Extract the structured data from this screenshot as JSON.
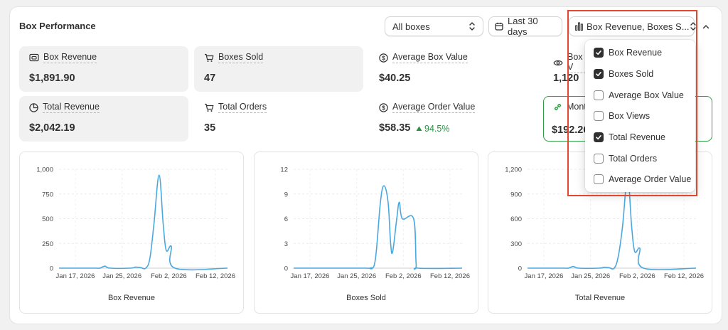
{
  "card": {
    "title": "Box Performance"
  },
  "controls": {
    "boxes_select": "All boxes",
    "date_range": "Last 30 days",
    "metrics_select": "Box Revenue, Boxes S..."
  },
  "metrics": [
    {
      "label": "Box Revenue",
      "value": "$1,891.90",
      "icon": "box-revenue-icon"
    },
    {
      "label": "Boxes Sold",
      "value": "47",
      "icon": "cart-icon"
    },
    {
      "label": "Average Box Value",
      "value": "$40.25",
      "icon": "dollar-circle-icon"
    },
    {
      "label": "Box V",
      "value": "1,120",
      "icon": "eye-icon"
    },
    {
      "label": "Total Revenue",
      "value": "$2,042.19",
      "icon": "revenue-chart-icon"
    },
    {
      "label": "Total Orders",
      "value": "35",
      "icon": "cart-icon"
    },
    {
      "label": "Average Order Value",
      "value": "$58.35",
      "delta": "94.5%",
      "icon": "dollar-circle-icon"
    },
    {
      "label": "Mont",
      "value": "$192.26",
      "icon": "link-icon"
    }
  ],
  "dropdown": {
    "items": [
      {
        "label": "Box Revenue",
        "checked": true
      },
      {
        "label": "Boxes Sold",
        "checked": true
      },
      {
        "label": "Average Box Value",
        "checked": false
      },
      {
        "label": "Box Views",
        "checked": false
      },
      {
        "label": "Total Revenue",
        "checked": true
      },
      {
        "label": "Total Orders",
        "checked": false
      },
      {
        "label": "Average Order Value",
        "checked": false
      }
    ]
  },
  "colors": {
    "line": "#4aa8e0",
    "accent_green": "#2f9e44",
    "highlight": "#e0492f"
  },
  "chart_data": [
    {
      "type": "line",
      "xlabel": "Box Revenue",
      "ylabel": "",
      "x_ticks": [
        "Jan 17, 2026",
        "Jan 25, 2026",
        "Feb 2, 2026",
        "Feb 12, 2026"
      ],
      "y_ticks": [
        "0",
        "250",
        "500",
        "750",
        "1,000"
      ],
      "ylim": [
        0,
        1000
      ],
      "x_range": [
        0,
        33
      ],
      "points": [
        [
          0,
          0
        ],
        [
          7,
          0
        ],
        [
          8,
          0
        ],
        [
          9,
          20
        ],
        [
          10,
          0
        ],
        [
          14,
          0
        ],
        [
          15,
          10
        ],
        [
          16,
          5
        ],
        [
          17,
          0
        ],
        [
          17.8,
          100
        ],
        [
          18.6,
          450
        ],
        [
          19.6,
          940
        ],
        [
          20.4,
          450
        ],
        [
          21,
          180
        ],
        [
          22,
          220
        ],
        [
          22.7,
          0
        ],
        [
          33,
          0
        ]
      ]
    },
    {
      "type": "line",
      "xlabel": "Boxes Sold",
      "ylabel": "",
      "x_ticks": [
        "Jan 17, 2026",
        "Jan 25, 2026",
        "Feb 2, 2026",
        "Feb 12, 2026"
      ],
      "y_ticks": [
        "0",
        "3",
        "6",
        "9",
        "12"
      ],
      "ylim": [
        0,
        12
      ],
      "x_range": [
        0,
        33
      ],
      "points": [
        [
          0,
          0
        ],
        [
          14,
          0
        ],
        [
          15,
          0
        ],
        [
          16,
          1
        ],
        [
          17,
          8
        ],
        [
          17.7,
          10
        ],
        [
          18.5,
          8
        ],
        [
          19,
          3
        ],
        [
          19.4,
          2
        ],
        [
          20.2,
          6
        ],
        [
          20.7,
          8
        ],
        [
          21.3,
          6
        ],
        [
          23.5,
          6
        ],
        [
          24,
          0.5
        ],
        [
          24.4,
          0
        ],
        [
          33,
          0
        ]
      ]
    },
    {
      "type": "line",
      "xlabel": "Total Revenue",
      "ylabel": "",
      "x_ticks": [
        "Jan 17, 2026",
        "Jan 25, 2026",
        "Feb 2, 2026",
        "Feb 12, 2026"
      ],
      "y_ticks": [
        "0",
        "300",
        "600",
        "900",
        "1,200"
      ],
      "ylim": [
        0,
        1200
      ],
      "x_range": [
        0,
        33
      ],
      "points": [
        [
          0,
          0
        ],
        [
          7,
          0
        ],
        [
          8,
          0
        ],
        [
          9,
          20
        ],
        [
          10,
          0
        ],
        [
          14,
          0
        ],
        [
          15,
          10
        ],
        [
          16,
          5
        ],
        [
          17,
          0
        ],
        [
          17.8,
          150
        ],
        [
          18.6,
          500
        ],
        [
          19.6,
          1100
        ],
        [
          20.4,
          500
        ],
        [
          21,
          200
        ],
        [
          22,
          240
        ],
        [
          22.7,
          0
        ],
        [
          33,
          0
        ]
      ]
    }
  ]
}
